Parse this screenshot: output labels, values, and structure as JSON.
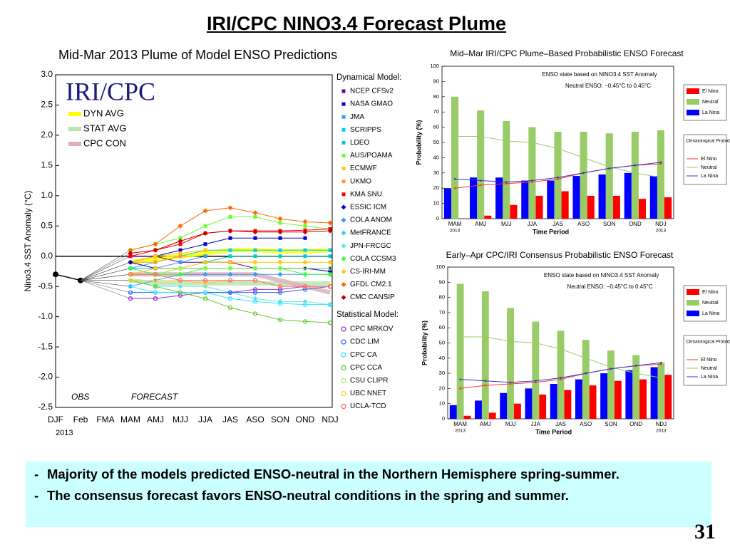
{
  "slide": {
    "title": "IRI/CPC NINO3.4 Forecast Plume",
    "bullet_marker": "-",
    "bullets": [
      "Majority of the models predicted ENSO-neutral in the Northern Hemisphere spring-summer.",
      "The consensus forecast favors ENSO-neutral conditions in the spring and summer."
    ],
    "page_number": "31"
  },
  "chart_data": [
    {
      "type": "line",
      "title": "Mid-Mar 2013 Plume of Model ENSO Predictions",
      "logo": "IRI/CPC",
      "ylabel": "Nino3.4 SST Anomaly (°C)",
      "year_label": "2013",
      "annotations": [
        "OBS",
        "FORECAST"
      ],
      "categories": [
        "DJF",
        "Feb",
        "FMA",
        "MAM",
        "AMJ",
        "MJJ",
        "JJA",
        "JAS",
        "ASO",
        "SON",
        "OND",
        "NDJ"
      ],
      "ylim": [
        -2.5,
        3.0
      ],
      "yticks": [
        {
          "value": 3,
          "label": "3.0"
        },
        2.5,
        {
          "value": 2,
          "label": "2.0"
        },
        1.5,
        {
          "value": 1,
          "label": "1.0"
        },
        0.5,
        {
          "value": 0,
          "label": "0.0"
        },
        -0.5,
        {
          "value": -1,
          "label": "-1.0"
        },
        -1.5,
        {
          "value": -2,
          "label": "-2.0"
        },
        -2.5
      ],
      "observed": {
        "color": "#000000",
        "values": [
          -0.3,
          -0.4,
          null,
          null,
          null,
          null,
          null,
          null,
          null,
          null,
          null,
          null
        ]
      },
      "averages": [
        {
          "name": "DYN AVG",
          "color": "#ffff00",
          "values": [
            null,
            null,
            null,
            -0.1,
            -0.05,
            0.0,
            0.05,
            0.1,
            0.1,
            0.08,
            0.08,
            0.1
          ]
        },
        {
          "name": "STAT AVG",
          "color": "#b8e6b0",
          "values": [
            null,
            null,
            null,
            -0.4,
            -0.45,
            -0.45,
            -0.45,
            -0.45,
            -0.45,
            -0.45,
            -0.45,
            -0.45
          ]
        },
        {
          "name": "CPC CON",
          "color": "#e0b0b8",
          "values": [
            null,
            null,
            null,
            -0.3,
            -0.3,
            -0.3,
            -0.3,
            -0.3,
            -0.3,
            -0.4,
            -0.5,
            -0.6
          ]
        }
      ],
      "dynamical_heading": "Dynamical Model:",
      "dynamical_models": [
        {
          "name": "NCEP CFSv2",
          "color": "#660099",
          "marker": "square",
          "values": [
            null,
            null,
            null,
            0.0,
            0.0,
            -0.1,
            -0.1,
            -0.1,
            -0.2,
            -0.2,
            -0.2,
            -0.2
          ]
        },
        {
          "name": "NASA GMAO",
          "color": "#0000cc",
          "marker": "square",
          "values": [
            null,
            null,
            null,
            -0.1,
            0.0,
            0.1,
            0.2,
            0.3,
            0.3,
            0.3,
            0.3,
            null
          ]
        },
        {
          "name": "JMA",
          "color": "#3399ff",
          "marker": "square",
          "values": [
            null,
            null,
            null,
            -0.2,
            -0.2,
            -0.1,
            0.0,
            null,
            null,
            null,
            null,
            null
          ]
        },
        {
          "name": "SCRIPPS",
          "color": "#00ccff",
          "marker": "square",
          "values": [
            null,
            null,
            null,
            -0.2,
            -0.1,
            0.0,
            0.1,
            0.1,
            0.1,
            0.1,
            0.1,
            0.1
          ]
        },
        {
          "name": "LDEO",
          "color": "#00cccc",
          "marker": "square",
          "values": [
            null,
            null,
            null,
            -0.3,
            -0.3,
            -0.2,
            -0.1,
            0.0,
            0.0,
            0.0,
            0.0,
            0.0
          ]
        },
        {
          "name": "AUS/POAMA",
          "color": "#66ff33",
          "marker": "square",
          "values": [
            null,
            null,
            null,
            0.1,
            0.2,
            0.3,
            0.5,
            0.65,
            0.65,
            0.55,
            0.5,
            0.45
          ]
        },
        {
          "name": "ECMWF",
          "color": "#ffcc00",
          "marker": "square",
          "values": [
            null,
            null,
            null,
            -0.1,
            0.0,
            0.05,
            0.1,
            null,
            null,
            null,
            null,
            null
          ]
        },
        {
          "name": "UKMO",
          "color": "#ff9933",
          "marker": "square",
          "values": [
            null,
            null,
            null,
            -0.1,
            -0.1,
            0.0,
            null,
            null,
            null,
            null,
            null,
            null
          ]
        },
        {
          "name": "KMA SNU",
          "color": "#ff0000",
          "marker": "square",
          "values": [
            null,
            null,
            null,
            0.0,
            0.1,
            0.2,
            0.38,
            0.42,
            0.42,
            0.42,
            0.43,
            0.45
          ]
        },
        {
          "name": "ESSIC ICM",
          "color": "#0000cc",
          "marker": "diamond",
          "values": [
            null,
            null,
            null,
            -0.1,
            -0.2,
            -0.2,
            -0.2,
            -0.2,
            -0.2,
            -0.2,
            -0.2,
            -0.25
          ]
        },
        {
          "name": "COLA ANOM",
          "color": "#3399ff",
          "marker": "diamond",
          "values": [
            null,
            null,
            null,
            -0.5,
            -0.4,
            -0.3,
            -0.3,
            -0.3,
            -0.3,
            -0.3,
            -0.3,
            -0.3
          ]
        },
        {
          "name": "MetFRANCE",
          "color": "#33ccff",
          "marker": "diamond",
          "values": [
            null,
            null,
            null,
            -0.3,
            -0.3,
            -0.2,
            null,
            null,
            null,
            null,
            null,
            null
          ]
        },
        {
          "name": "JPN-FRCGC",
          "color": "#66e6e6",
          "marker": "diamond",
          "values": [
            null,
            null,
            null,
            -0.4,
            -0.5,
            -0.5,
            -0.5,
            -0.6,
            -0.7,
            -0.75,
            -0.75,
            -0.8
          ]
        },
        {
          "name": "COLA CCSM3",
          "color": "#33ff33",
          "marker": "diamond",
          "values": [
            null,
            null,
            null,
            -0.2,
            -0.3,
            -0.3,
            -0.2,
            -0.2,
            -0.2,
            -0.2,
            -0.3,
            -0.3
          ]
        },
        {
          "name": "CS-IRI-MM",
          "color": "#ffcc00",
          "marker": "diamond",
          "values": [
            null,
            null,
            null,
            -0.3,
            -0.2,
            -0.2,
            -0.1,
            -0.1,
            -0.1,
            -0.1,
            -0.1,
            -0.1
          ]
        },
        {
          "name": "GFDL CM2.1",
          "color": "#ff6600",
          "marker": "diamond",
          "values": [
            null,
            null,
            null,
            0.1,
            0.2,
            0.5,
            0.75,
            0.8,
            0.72,
            0.62,
            0.57,
            0.55
          ]
        },
        {
          "name": "CMC CANSIP",
          "color": "#cc0000",
          "marker": "diamond",
          "values": [
            null,
            null,
            null,
            0.05,
            0.1,
            0.25,
            0.38,
            0.42,
            0.4,
            0.4,
            0.4,
            0.42
          ]
        }
      ],
      "statistical_heading": "Statistical Model:",
      "statistical_models": [
        {
          "name": "CPC MRKOV",
          "color": "#9933cc",
          "marker": "circle",
          "values": [
            null,
            null,
            null,
            -0.7,
            -0.7,
            -0.65,
            -0.6,
            -0.6,
            -0.55,
            -0.55,
            -0.5,
            -0.5
          ]
        },
        {
          "name": "CDC LIM",
          "color": "#3366ff",
          "marker": "circle",
          "values": [
            null,
            null,
            null,
            -0.6,
            -0.6,
            -0.6,
            -0.6,
            -0.6,
            -0.6,
            -0.6,
            -0.55,
            -0.5
          ]
        },
        {
          "name": "CPC CA",
          "color": "#33e6ff",
          "marker": "circle",
          "values": [
            null,
            null,
            null,
            -0.5,
            -0.6,
            -0.6,
            -0.6,
            -0.7,
            -0.75,
            -0.78,
            -0.8,
            -0.8
          ]
        },
        {
          "name": "CPC CCA",
          "color": "#66cc33",
          "marker": "circle",
          "values": [
            null,
            null,
            null,
            -0.4,
            -0.5,
            -0.6,
            -0.7,
            -0.85,
            -0.95,
            -1.05,
            -1.08,
            -1.1
          ]
        },
        {
          "name": "CSU CLIPR",
          "color": "#99ff66",
          "marker": "circle",
          "values": [
            null,
            null,
            null,
            -0.3,
            -0.3,
            -0.2,
            -0.2,
            -0.2,
            -0.2,
            -0.2,
            -0.2,
            -0.2
          ]
        },
        {
          "name": "UBC NNET",
          "color": "#ffcc33",
          "marker": "circle",
          "values": [
            null,
            null,
            null,
            -0.4,
            -0.4,
            -0.4,
            -0.45,
            -0.4,
            -0.4,
            -0.5,
            -0.5,
            -0.5
          ]
        },
        {
          "name": "UCLA-TCD",
          "color": "#ff6666",
          "marker": "circle",
          "values": [
            null,
            null,
            null,
            -0.3,
            -0.3,
            -0.4,
            -0.4,
            -0.4,
            -0.4,
            -0.5,
            -0.5,
            -0.5
          ]
        }
      ]
    },
    {
      "type": "bar",
      "title": "Mid–Mar IRI/CPC Plume–Based Probabilistic ENSO Forecast",
      "annotations": [
        "ENSO state based on NINO3.4 SST Anomaly",
        "Neutral ENSO: −0.45°C to 0.45°C"
      ],
      "xlabel": "Time Period",
      "ylabel": "Probability (%)",
      "year_labels": [
        "2013",
        "2013"
      ],
      "categories": [
        "MAM",
        "AMJ",
        "MJJ",
        "JJA",
        "JAS",
        "ASO",
        "SON",
        "OND",
        "NDJ"
      ],
      "ylim": [
        0,
        100
      ],
      "yticks": [
        0,
        10,
        20,
        30,
        40,
        50,
        60,
        70,
        80,
        90,
        100
      ],
      "series": [
        {
          "name": "El Nino",
          "color": "#ff0000",
          "values": [
            0,
            2,
            9,
            15,
            18,
            15,
            15,
            13,
            14
          ]
        },
        {
          "name": "Neutral",
          "color": "#99cc66",
          "values": [
            80,
            71,
            64,
            60,
            57,
            57,
            56,
            57,
            58
          ]
        },
        {
          "name": "La Nina",
          "color": "#0000ff",
          "values": [
            20,
            27,
            27,
            25,
            25,
            28,
            29,
            30,
            28
          ]
        }
      ],
      "climatology": {
        "title": "Climatological Probability:",
        "series": [
          {
            "name": "El Nino",
            "color": "#ff3333",
            "values": [
              20,
              22,
              23,
              24,
              26,
              30,
              33,
              35,
              36
            ]
          },
          {
            "name": "Neutral",
            "color": "#99cc66",
            "values": [
              54,
              54,
              51,
              50,
              46,
              40,
              34,
              30,
              27
            ]
          },
          {
            "name": "La Nina",
            "color": "#3333cc",
            "values": [
              26,
              25,
              24,
              25,
              27,
              30,
              33,
              35,
              37
            ]
          }
        ]
      }
    },
    {
      "type": "bar",
      "title": "Early–Apr CPC/IRI Consensus Probabilistic ENSO Forecast",
      "annotations": [
        "ENSO state based on NINO3.4 SST Anomaly",
        "Neutral ENSO: −0.45°C to 0.45°C"
      ],
      "xlabel": "Time Period",
      "ylabel": "Probability (%)",
      "year_labels": [
        "2013",
        "2013"
      ],
      "categories": [
        "MAM",
        "AMJ",
        "MJJ",
        "JJA",
        "JAS",
        "ASO",
        "SON",
        "OND",
        "NDJ"
      ],
      "ylim": [
        0,
        100
      ],
      "yticks": [
        0,
        10,
        20,
        30,
        40,
        50,
        60,
        70,
        80,
        90,
        100
      ],
      "series": [
        {
          "name": "El Nino",
          "color": "#ff0000",
          "values": [
            2,
            4,
            10,
            16,
            19,
            22,
            25,
            26,
            29
          ]
        },
        {
          "name": "Neutral",
          "color": "#99cc66",
          "values": [
            89,
            84,
            73,
            64,
            58,
            52,
            45,
            42,
            37
          ]
        },
        {
          "name": "La Nina",
          "color": "#0000ff",
          "values": [
            9,
            12,
            17,
            20,
            23,
            26,
            30,
            32,
            34
          ]
        }
      ],
      "climatology": {
        "title": "Climatological Probability:",
        "series": [
          {
            "name": "El Nino",
            "color": "#ff3333",
            "values": [
              20,
              22,
              23,
              24,
              26,
              30,
              33,
              35,
              36
            ]
          },
          {
            "name": "Neutral",
            "color": "#99cc66",
            "values": [
              54,
              54,
              51,
              50,
              46,
              40,
              34,
              30,
              27
            ]
          },
          {
            "name": "La Nina",
            "color": "#3333cc",
            "values": [
              26,
              25,
              24,
              25,
              27,
              30,
              33,
              35,
              37
            ]
          }
        ]
      }
    }
  ]
}
